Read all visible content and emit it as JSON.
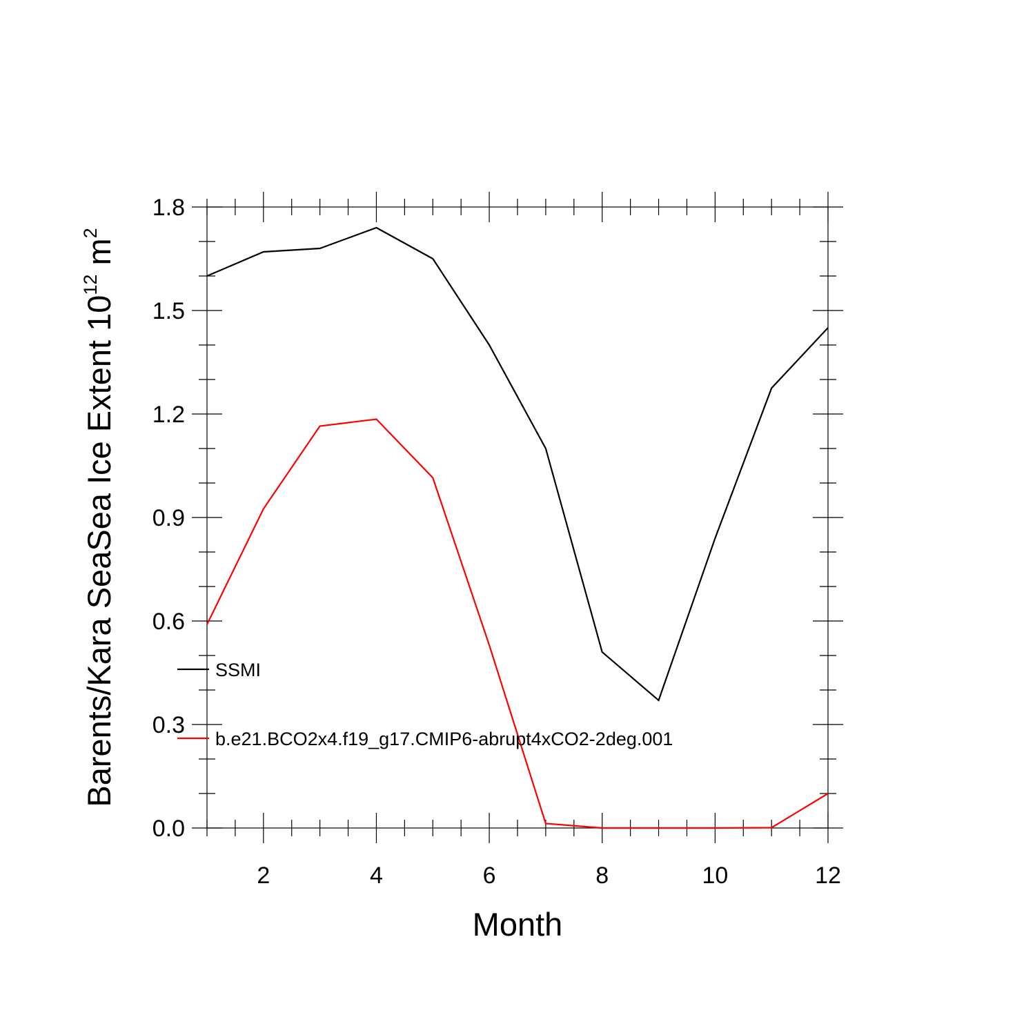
{
  "chart_data": {
    "type": "line",
    "xlabel": "Month",
    "ylabel": {
      "text": "Barents/Kara SeaSea Ice Extent 10",
      "superscript": "12",
      "unit": " m",
      "unit_superscript": "2"
    },
    "xlim": [
      1,
      12
    ],
    "ylim": [
      0,
      1.8
    ],
    "x_major_ticks": [
      2,
      4,
      6,
      8,
      10,
      12
    ],
    "x_minor_step": 0.5,
    "y_major_ticks": [
      "0.0",
      "0.3",
      "0.6",
      "0.9",
      "1.2",
      "1.5",
      "1.8"
    ],
    "y_minor_step": 0.1,
    "grid": false,
    "legend_position": "lower-left inside",
    "x": [
      1,
      2,
      3,
      4,
      5,
      6,
      7,
      8,
      9,
      10,
      11,
      12
    ],
    "series": [
      {
        "name": "SSMI",
        "color": "#000000",
        "values": [
          1.6,
          1.67,
          1.68,
          1.74,
          1.65,
          1.4,
          1.1,
          0.51,
          0.37,
          0.84,
          1.275,
          1.45
        ]
      },
      {
        "name": "b.e21.BCO2x4.f19_g17.CMIP6-abrupt4xCO2-2deg.001",
        "color": "#ff0000",
        "values": [
          0.59,
          0.925,
          1.165,
          1.185,
          1.015,
          0.53,
          0.013,
          0.0,
          0.0,
          0.0,
          0.001,
          0.1
        ]
      }
    ]
  }
}
